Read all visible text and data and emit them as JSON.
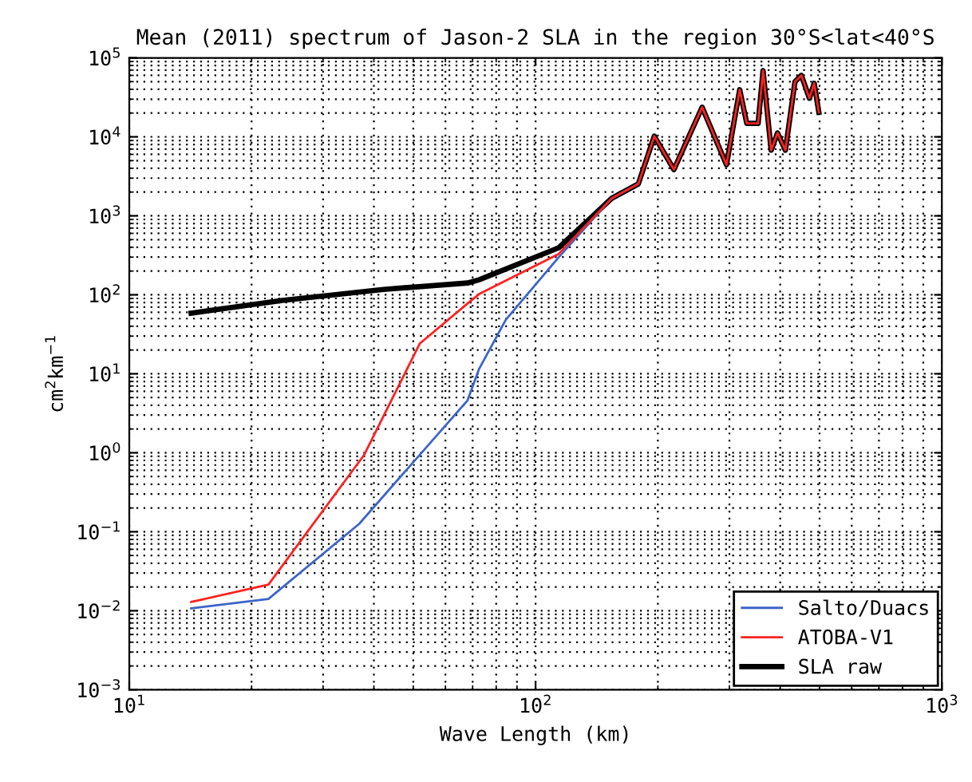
{
  "chart_data": {
    "type": "line",
    "title": "Mean (2011) spectrum of Jason-2 SLA in the region 30°S<lat<40°S",
    "xlabel": "Wave Length (km)",
    "ylabel": "cm$^{2}$km$^{−1}$",
    "log": "xy",
    "grid": true,
    "legend": "bottom right",
    "line_style": "solid",
    "marker": "none",
    "xlim": [
      10,
      1000
    ],
    "xticks": [
      {
        "value": 10,
        "label": "10$^{1}$"
      },
      {
        "value": 100,
        "label": "10$^{2}$"
      },
      {
        "value": 1000,
        "label": "10$^{3}$"
      }
    ],
    "ylim": [
      0.001,
      100000
    ],
    "yticks": [
      {
        "value": 0.001,
        "label": "10$^{−3}$"
      },
      {
        "value": 0.01,
        "label": "10$^{−2}$"
      },
      {
        "value": 0.1,
        "label": "10$^{−1}$"
      },
      {
        "value": 1,
        "label": "10$^{0}$"
      },
      {
        "value": 10,
        "label": "10$^{1}$"
      },
      {
        "value": 100,
        "label": "10$^{2}$"
      },
      {
        "value": 1000,
        "label": "10$^{3}$"
      },
      {
        "value": 10000,
        "label": "10$^{4}$"
      },
      {
        "value": 100000,
        "label": "10$^{5}$"
      }
    ],
    "series": [
      {
        "name": "Salto/Duacs",
        "color": "#3c64c8",
        "x": [
          14.2,
          22,
          36.8,
          68,
          72.6,
          84.5,
          114,
          154,
          179
        ],
        "values": [
          0.0107,
          0.0141,
          0.126,
          4.6,
          11.5,
          48.5,
          299,
          1667,
          2535
        ]
      },
      {
        "name": "ATOBA-V1",
        "color": "#ff2020",
        "x": [
          14.2,
          22,
          37.8,
          51.9,
          68,
          72.6,
          114,
          154,
          179,
          196,
          219,
          257,
          295,
          318,
          331,
          353,
          363,
          380,
          394,
          412,
          435,
          451,
          472,
          485,
          498
        ],
        "values": [
          0.0129,
          0.0214,
          0.93,
          24.2,
          77.5,
          102,
          330,
          1667,
          2535,
          10200,
          3850,
          23700,
          4430,
          39500,
          14800,
          14800,
          69000,
          6770,
          11200,
          6770,
          50000,
          60000,
          30800,
          47500,
          20500
        ]
      },
      {
        "name": "SLA raw",
        "color": "#000000",
        "x": [
          14.2,
          23.8,
          42.2,
          68,
          72.6,
          114,
          154,
          179,
          196,
          219,
          257,
          295,
          318,
          331,
          353,
          363,
          380,
          394,
          412,
          435,
          451,
          472,
          485,
          498
        ],
        "values": [
          58.6,
          85,
          117,
          141,
          155,
          394,
          1667,
          2535,
          10200,
          3850,
          23700,
          4430,
          39500,
          14800,
          14800,
          69000,
          6770,
          11200,
          6770,
          50000,
          60000,
          30800,
          47500,
          20500
        ]
      }
    ]
  }
}
